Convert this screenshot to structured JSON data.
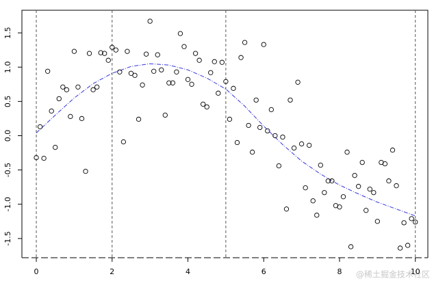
{
  "chart_data": {
    "type": "scatter",
    "x": [
      0,
      0.1,
      0.2,
      0.3,
      0.4,
      0.5,
      0.6,
      0.7,
      0.8,
      0.9,
      1.0,
      1.1,
      1.2,
      1.3,
      1.4,
      1.5,
      1.6,
      1.7,
      1.8,
      1.9,
      2.0,
      2.1,
      2.2,
      2.3,
      2.4,
      2.5,
      2.6,
      2.7,
      2.8,
      2.9,
      3.0,
      3.1,
      3.2,
      3.3,
      3.4,
      3.5,
      3.6,
      3.7,
      3.8,
      3.9,
      4.0,
      4.1,
      4.2,
      4.3,
      4.4,
      4.5,
      4.6,
      4.7,
      4.8,
      4.9,
      5.0,
      5.1,
      5.2,
      5.3,
      5.4,
      5.5,
      5.6,
      5.7,
      5.8,
      5.9,
      6.0,
      6.1,
      6.2,
      6.3,
      6.4,
      6.5,
      6.6,
      6.7,
      6.8,
      6.9,
      7.0,
      7.1,
      7.2,
      7.3,
      7.4,
      7.5,
      7.6,
      7.7,
      7.8,
      7.9,
      8.0,
      8.1,
      8.2,
      8.3,
      8.4,
      8.5,
      8.6,
      8.7,
      8.8,
      8.9,
      9.0,
      9.1,
      9.2,
      9.3,
      9.4,
      9.5,
      9.6,
      9.7,
      9.8,
      9.9,
      10.0
    ],
    "values": [
      -0.32,
      0.13,
      -0.33,
      0.94,
      0.36,
      -0.17,
      0.54,
      0.71,
      0.67,
      0.28,
      1.23,
      0.71,
      0.25,
      -0.52,
      1.2,
      0.67,
      0.71,
      1.21,
      1.2,
      1.1,
      1.29,
      1.25,
      0.93,
      -0.09,
      1.23,
      0.91,
      0.88,
      0.24,
      0.74,
      1.19,
      1.67,
      0.94,
      1.18,
      0.96,
      0.3,
      0.77,
      0.77,
      0.93,
      1.49,
      1.3,
      0.82,
      0.75,
      1.2,
      1.1,
      0.46,
      0.42,
      0.92,
      1.08,
      0.62,
      1.07,
      0.79,
      0.24,
      0.69,
      -0.1,
      1.14,
      1.36,
      0.15,
      -0.24,
      0.52,
      0.12,
      1.33,
      0.07,
      0.38,
      0.0,
      -0.44,
      -0.02,
      -1.07,
      0.52,
      -0.18,
      0.78,
      -0.12,
      -0.76,
      -0.14,
      -0.95,
      -1.16,
      -0.43,
      -0.83,
      -0.66,
      -0.66,
      -1.02,
      -1.04,
      -0.89,
      -0.24,
      -1.62,
      -0.58,
      -0.74,
      -0.39,
      -1.09,
      -0.78,
      -0.83,
      -1.25,
      -0.39,
      -0.41,
      -0.66,
      -0.21,
      -0.73,
      -1.64,
      -1.27,
      -1.6,
      -1.21,
      -1.26
    ],
    "color": "#000000",
    "curve": {
      "x": [
        0,
        0.5,
        1,
        1.5,
        2,
        2.5,
        3,
        3.5,
        4,
        4.5,
        5,
        5.5,
        6,
        6.5,
        7,
        7.5,
        8,
        8.5,
        9,
        9.5,
        10
      ],
      "values": [
        0.04,
        0.3,
        0.55,
        0.76,
        0.91,
        1.01,
        1.05,
        1.03,
        0.96,
        0.84,
        0.68,
        0.43,
        0.14,
        -0.13,
        -0.37,
        -0.56,
        -0.72,
        -0.85,
        -0.97,
        -1.07,
        -1.17
      ],
      "color": "#3333dd"
    },
    "vlines": [
      0,
      2,
      5,
      10
    ],
    "xlim": [
      -0.38,
      10.33
    ],
    "ylim": [
      -1.78,
      1.83
    ],
    "xticks": [
      0,
      2,
      4,
      6,
      8,
      10
    ],
    "yticks": [
      1.5,
      {
        "value": 1,
        "label": "1.0"
      },
      0.5,
      {
        "value": 0,
        "label": "0.0"
      },
      -0.5,
      {
        "value": -1,
        "label": "-1.0"
      },
      -1.5
    ],
    "watermark": "@稀土掘金技术社区"
  }
}
